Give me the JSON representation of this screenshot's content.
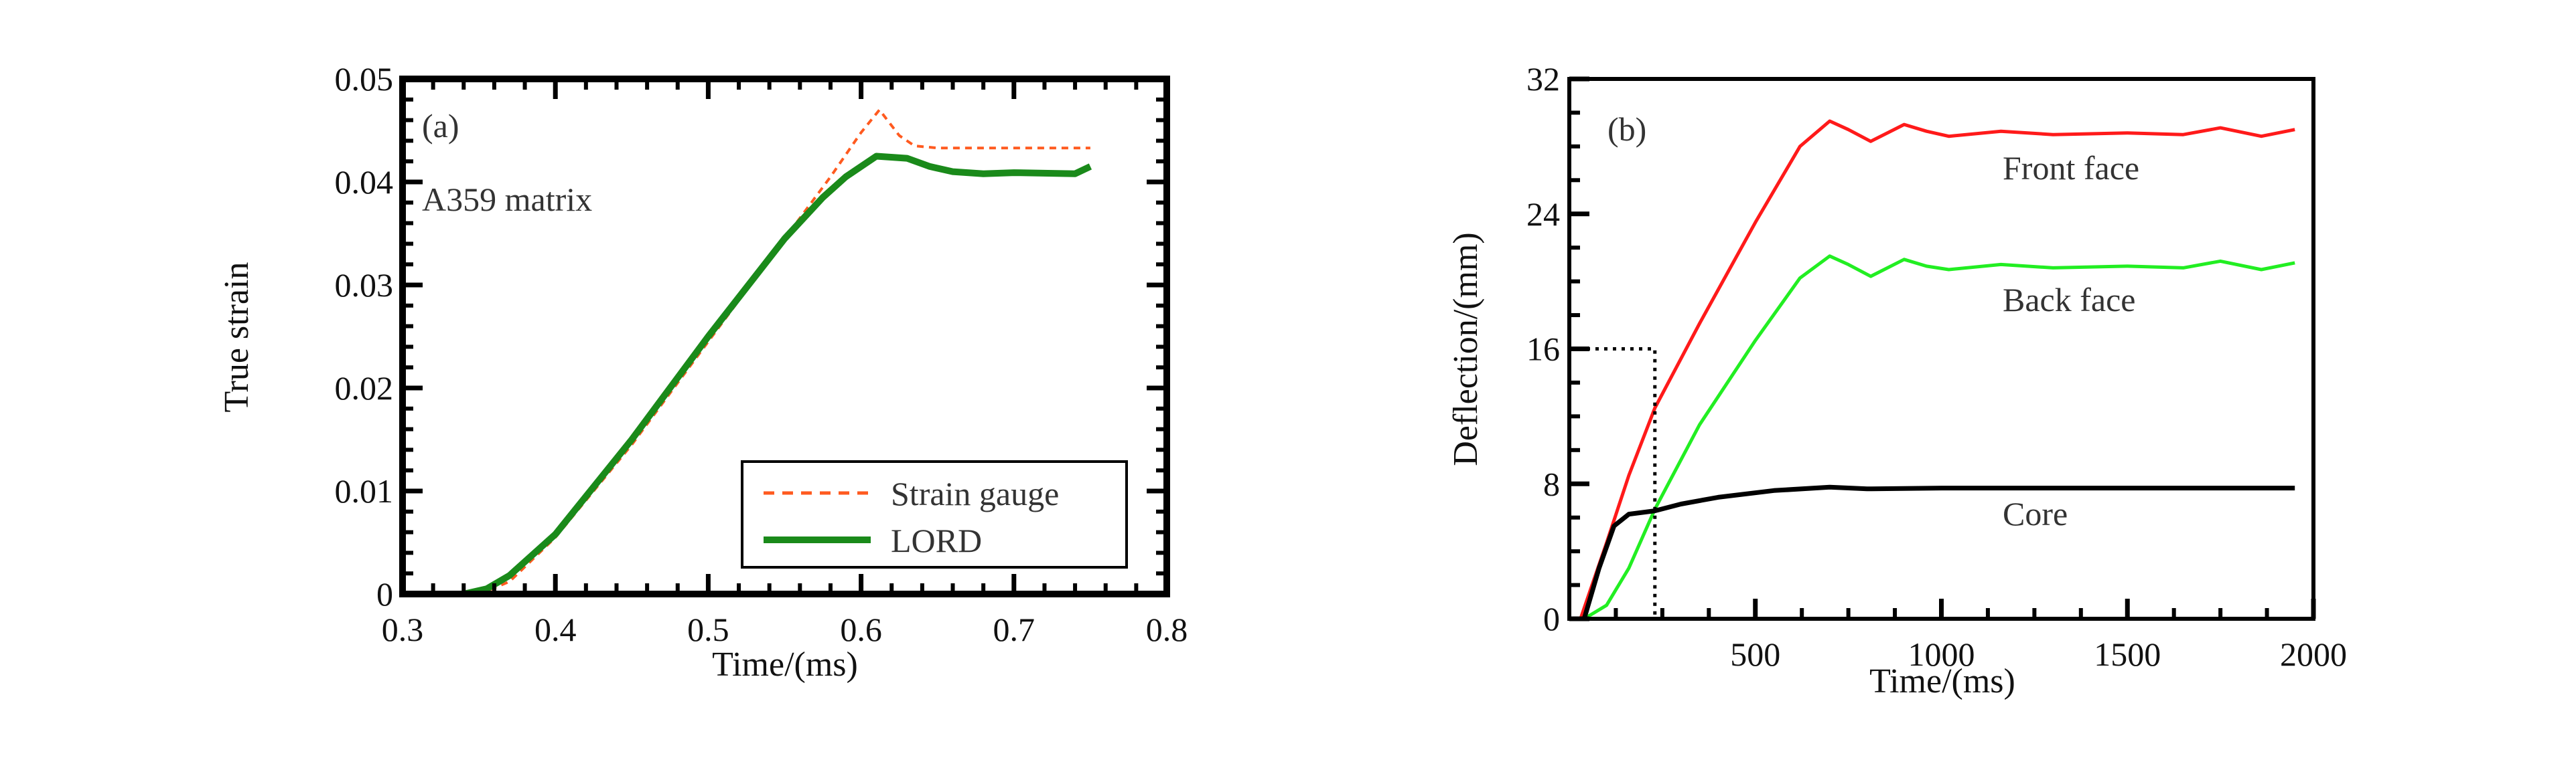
{
  "chart_data": [
    {
      "type": "line",
      "panel_label": "(a)",
      "annotation": "A359 matrix",
      "xlabel": "Time/(ms)",
      "ylabel": "True strain",
      "xlim": [
        0.3,
        0.8
      ],
      "ylim": [
        0,
        0.05
      ],
      "xticks": [
        "0.3",
        "0.4",
        "0.5",
        "0.6",
        "0.7",
        "0.8"
      ],
      "yticks": [
        "0",
        "0.01",
        "0.02",
        "0.03",
        "0.04",
        "0.05"
      ],
      "legend_position": "bottom-right",
      "series": [
        {
          "name": "Strain gauge",
          "color": "#ff5a1f",
          "style": "dashed",
          "x": [
            0.35,
            0.37,
            0.4,
            0.45,
            0.5,
            0.55,
            0.58,
            0.6,
            0.612,
            0.625,
            0.635,
            0.65,
            0.7,
            0.75
          ],
          "y": [
            0.0,
            0.0012,
            0.0055,
            0.0145,
            0.0245,
            0.0345,
            0.0405,
            0.0448,
            0.047,
            0.0445,
            0.0435,
            0.0433,
            0.0433,
            0.0433
          ]
        },
        {
          "name": "LORD",
          "color": "#1a8a1a",
          "style": "solid",
          "x": [
            0.34,
            0.355,
            0.37,
            0.4,
            0.45,
            0.5,
            0.55,
            0.575,
            0.59,
            0.61,
            0.63,
            0.645,
            0.66,
            0.68,
            0.7,
            0.74,
            0.75
          ],
          "y": [
            0.0,
            0.0005,
            0.0018,
            0.0058,
            0.015,
            0.025,
            0.0345,
            0.0385,
            0.0405,
            0.0425,
            0.0423,
            0.0415,
            0.041,
            0.0408,
            0.0409,
            0.0408,
            0.0415
          ]
        }
      ]
    },
    {
      "type": "line",
      "panel_label": "(b)",
      "xlabel": "Time/(ms)",
      "ylabel": "Deflection/(mm)",
      "xlim": [
        0,
        2000
      ],
      "ylim": [
        0,
        32
      ],
      "xticks": [
        "500",
        "1000",
        "1500",
        "2000"
      ],
      "yticks": [
        "0",
        "8",
        "16",
        "24",
        "32"
      ],
      "guide_line": {
        "x": 230,
        "y": 16,
        "style": "dotted"
      },
      "series": [
        {
          "name": "Front face",
          "color": "#ff1a1a",
          "x": [
            30,
            100,
            160,
            230,
            350,
            500,
            620,
            700,
            750,
            810,
            900,
            960,
            1020,
            1160,
            1300,
            1500,
            1650,
            1750,
            1860,
            1950
          ],
          "y": [
            0,
            4.5,
            8.5,
            12.5,
            17.5,
            23.5,
            28,
            29.5,
            29.0,
            28.3,
            29.3,
            28.9,
            28.6,
            28.9,
            28.7,
            28.8,
            28.7,
            29.1,
            28.6,
            29.0
          ]
        },
        {
          "name": "Back face",
          "color": "#22ee22",
          "x": [
            40,
            100,
            160,
            230,
            350,
            500,
            620,
            700,
            750,
            810,
            900,
            960,
            1020,
            1160,
            1300,
            1500,
            1650,
            1750,
            1860,
            1950
          ],
          "y": [
            0,
            0.8,
            3,
            6.5,
            11.5,
            16.5,
            20.2,
            21.5,
            21.0,
            20.3,
            21.3,
            20.9,
            20.7,
            21.0,
            20.8,
            20.9,
            20.8,
            21.2,
            20.7,
            21.1
          ],
          "label_pos": "above"
        },
        {
          "name": "Core",
          "color": "#000000",
          "x": [
            40,
            80,
            120,
            160,
            230,
            300,
            400,
            550,
            700,
            800,
            1000,
            1500,
            1950
          ],
          "y": [
            0,
            3,
            5.5,
            6.2,
            6.4,
            6.8,
            7.2,
            7.6,
            7.8,
            7.7,
            7.75,
            7.75,
            7.75
          ]
        }
      ]
    }
  ]
}
